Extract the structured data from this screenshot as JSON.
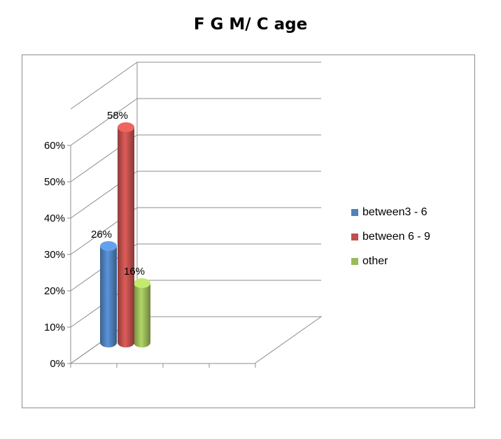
{
  "chart_data": {
    "type": "bar",
    "title": "F G M/ C age",
    "categories": [
      "between3 - 6",
      "between 6 - 9",
      "other"
    ],
    "series": [
      {
        "name": "between3 - 6",
        "value": 26,
        "label": "26%",
        "color": "#4f81bd"
      },
      {
        "name": "between 6 - 9",
        "value": 58,
        "label": "58%",
        "color": "#c0504d"
      },
      {
        "name": "other",
        "value": 16,
        "label": "16%",
        "color": "#9bbb59"
      }
    ],
    "yticks": [
      "0%",
      "10%",
      "20%",
      "30%",
      "40%",
      "50%",
      "60%"
    ],
    "ylim": [
      0,
      60
    ],
    "grid": true,
    "legend_position": "right",
    "three_d": true
  }
}
